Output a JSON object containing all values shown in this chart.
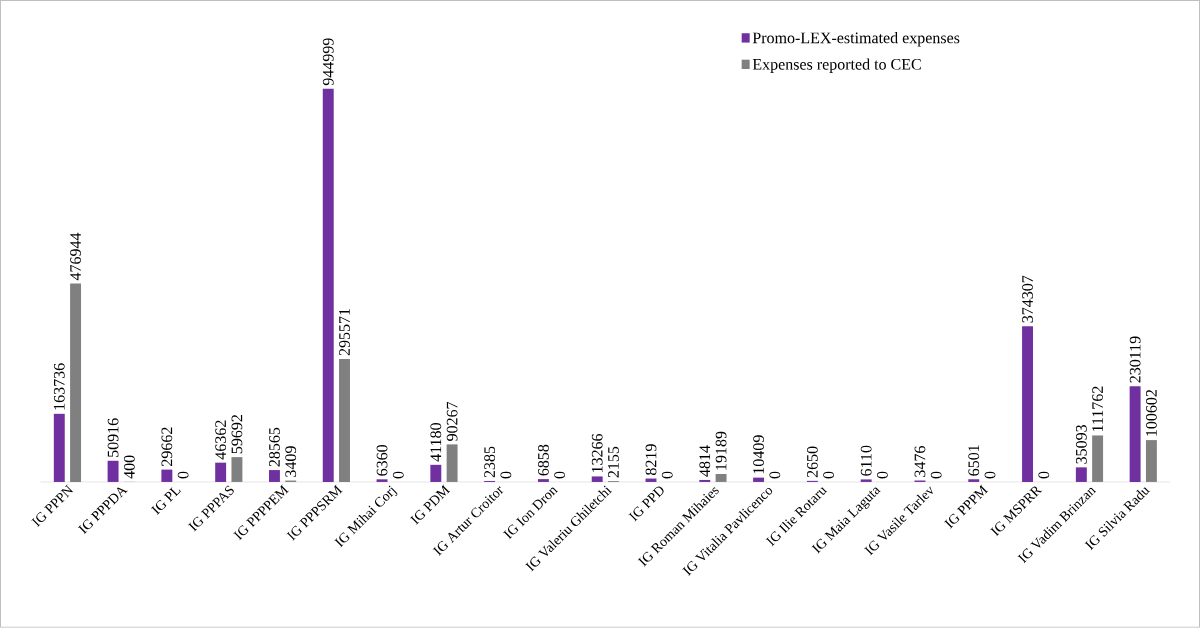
{
  "chart_data": {
    "type": "bar",
    "categories": [
      "IG PPPN",
      "IG PPPDA",
      "IG PL",
      "IG PPPAS",
      "IG PPPPEM",
      "IG PPPSRM",
      "IG Mihai Corj",
      "IG PDM",
      "IG Artur Croitor",
      "IG Ion Dron",
      "IG Valeriu Ghiletchi",
      "IG PPD",
      "IG Roman Mihaies",
      "IG Vitalia Pavlicenco",
      "IG Ilie Rotaru",
      "IG Maia Laguta",
      "IG Vasile Tarlev",
      "IG PPPM",
      "IG MSPRR",
      "IG Vadim Brinzan",
      "IG Silvia Radu"
    ],
    "series": [
      {
        "name": "Promo-LEX-estimated expenses",
        "color": "#7030a0",
        "values": [
          163736,
          50916,
          29662,
          46362,
          28565,
          944999,
          6360,
          41180,
          2385,
          6858,
          13266,
          8219,
          4814,
          10409,
          2650,
          6110,
          3476,
          6501,
          374307,
          35093,
          230119
        ]
      },
      {
        "name": "Expenses reported to CEC",
        "color": "#808080",
        "values": [
          476944,
          400,
          0,
          59692,
          3409,
          295571,
          0,
          90267,
          0,
          0,
          2155,
          0,
          19189,
          0,
          0,
          0,
          0,
          0,
          0,
          111762,
          100602
        ]
      }
    ],
    "data_labels": true,
    "legend": "top right"
  }
}
